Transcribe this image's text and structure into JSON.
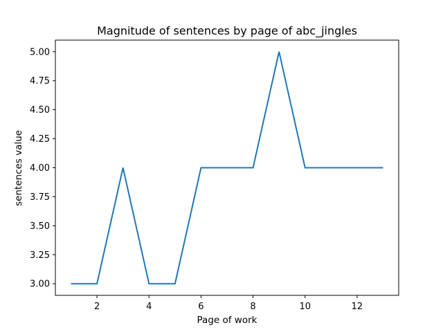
{
  "chart_data": {
    "type": "line",
    "title": "Magnitude of sentences by page of abc_jingles",
    "xlabel": "Page of work",
    "ylabel": "sentences value",
    "x": [
      1,
      2,
      3,
      4,
      5,
      6,
      7,
      8,
      9,
      10,
      11,
      12,
      13
    ],
    "series": [
      {
        "values": [
          3,
          3,
          4,
          3,
          3,
          4,
          4,
          4,
          5,
          4,
          4,
          4,
          4
        ],
        "color": "#1f77b4"
      }
    ],
    "xlim": [
      0.4,
      13.6
    ],
    "ylim": [
      2.9,
      5.1
    ],
    "xticks": [
      2,
      4,
      6,
      8,
      10,
      12
    ],
    "xtick_labels": [
      "2",
      "4",
      "6",
      "8",
      "10",
      "12"
    ],
    "yticks": [
      3.0,
      3.25,
      3.5,
      3.75,
      4.0,
      4.25,
      4.5,
      4.75,
      5.0
    ],
    "ytick_labels": [
      "3.00",
      "3.25",
      "3.50",
      "3.75",
      "4.00",
      "4.25",
      "4.50",
      "4.75",
      "5.00"
    ],
    "grid": false,
    "legend": "none"
  }
}
